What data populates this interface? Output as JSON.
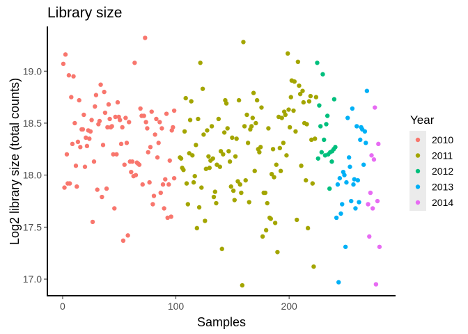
{
  "chart_data": {
    "type": "scatter",
    "title": "Library size",
    "xlabel": "Samples",
    "ylabel": "Log2 library size (total counts)",
    "xlim": [
      -13.5,
      294
    ],
    "ylim": [
      16.84,
      19.43
    ],
    "xticks": [
      0,
      100,
      200
    ],
    "xtick_labels": [
      "0",
      "100",
      "200"
    ],
    "yticks": [
      17.0,
      17.5,
      18.0,
      18.5,
      19.0
    ],
    "ytick_labels": [
      "17.0",
      "17.5",
      "18.0",
      "18.5",
      "19.0"
    ],
    "grid": false,
    "legend": {
      "title": "Year",
      "position": "right"
    },
    "series": [
      {
        "name": "2010",
        "color": "#F8766D",
        "points": [
          [
            72.8,
            19.32
          ],
          [
            2.5,
            19.16
          ],
          [
            0.6,
            19.07
          ],
          [
            63.6,
            19.08
          ],
          [
            5.5,
            18.96
          ],
          [
            9.6,
            18.95
          ],
          [
            33.6,
            18.87
          ],
          [
            36.7,
            18.8
          ],
          [
            29.5,
            18.77
          ],
          [
            7.6,
            18.75
          ],
          [
            14.6,
            18.72
          ],
          [
            40.6,
            18.68
          ],
          [
            48.6,
            18.7
          ],
          [
            28.5,
            18.66
          ],
          [
            37.5,
            18.6
          ],
          [
            68.7,
            18.64
          ],
          [
            78.6,
            18.61
          ],
          [
            18.7,
            18.58
          ],
          [
            69.8,
            18.57
          ],
          [
            71.8,
            18.57
          ],
          [
            91.7,
            18.59
          ],
          [
            98.5,
            18.62
          ],
          [
            41.6,
            18.54
          ],
          [
            46.6,
            18.56
          ],
          [
            49.6,
            18.56
          ],
          [
            50.6,
            18.53
          ],
          [
            55.6,
            18.55
          ],
          [
            58.6,
            18.51
          ],
          [
            25.6,
            18.53
          ],
          [
            10.7,
            18.5
          ],
          [
            32.6,
            18.52
          ],
          [
            31.6,
            18.49
          ],
          [
            82.7,
            18.54
          ],
          [
            85.7,
            18.51
          ],
          [
            73.6,
            18.51
          ],
          [
            74.7,
            18.45
          ],
          [
            87.6,
            18.45
          ],
          [
            97.4,
            18.46
          ],
          [
            96.4,
            18.43
          ],
          [
            39.6,
            18.46
          ],
          [
            43.5,
            18.47
          ],
          [
            42.5,
            18.46
          ],
          [
            52.7,
            18.46
          ],
          [
            16.8,
            18.44
          ],
          [
            17.8,
            18.44
          ],
          [
            22.6,
            18.43
          ],
          [
            24.6,
            18.42
          ],
          [
            81.6,
            18.39
          ],
          [
            20.5,
            18.36
          ],
          [
            23.6,
            18.35
          ],
          [
            13.5,
            18.32
          ],
          [
            8.6,
            18.3
          ],
          [
            15.6,
            18.27
          ],
          [
            21.5,
            18.28
          ],
          [
            35.7,
            18.29
          ],
          [
            51.7,
            18.3
          ],
          [
            56.6,
            18.31
          ],
          [
            84.7,
            18.31
          ],
          [
            77.5,
            18.27
          ],
          [
            75.5,
            18.22
          ],
          [
            3.7,
            18.2
          ],
          [
            44.7,
            18.2
          ],
          [
            47.6,
            18.2
          ],
          [
            83.7,
            18.17
          ],
          [
            27.7,
            18.13
          ],
          [
            94.6,
            18.14
          ],
          [
            59.5,
            18.13
          ],
          [
            61.5,
            18.13
          ],
          [
            65.6,
            18.12
          ],
          [
            66.7,
            18.11
          ],
          [
            67.7,
            18.1
          ],
          [
            11.7,
            18.09
          ],
          [
            19.7,
            18.08
          ],
          [
            54.6,
            18.1
          ],
          [
            60.5,
            18.03
          ],
          [
            62.6,
            17.99
          ],
          [
            64.6,
            18.0
          ],
          [
            98.5,
            17.97
          ],
          [
            90.6,
            17.96
          ],
          [
            88.6,
            17.91
          ],
          [
            93.7,
            17.91
          ],
          [
            76.7,
            17.93
          ],
          [
            70.6,
            17.91
          ],
          [
            4.5,
            17.92
          ],
          [
            6.3,
            17.92
          ],
          [
            1.6,
            17.88
          ],
          [
            12.5,
            17.89
          ],
          [
            30.6,
            17.86
          ],
          [
            38.8,
            17.87
          ],
          [
            34.7,
            17.79
          ],
          [
            86.6,
            17.83
          ],
          [
            80.6,
            17.8
          ],
          [
            79.6,
            17.72
          ],
          [
            89.6,
            17.68
          ],
          [
            45.7,
            17.68
          ],
          [
            92.7,
            17.59
          ],
          [
            95.8,
            17.6
          ],
          [
            26.5,
            17.55
          ],
          [
            57.6,
            17.42
          ],
          [
            53.5,
            17.37
          ]
        ]
      },
      {
        "name": "2011",
        "color": "#A3A500",
        "points": [
          [
            159.6,
            19.28
          ],
          [
            198.8,
            19.17
          ],
          [
            121.6,
            19.08
          ],
          [
            202.3,
            18.91
          ],
          [
            123.7,
            18.83
          ],
          [
            108.7,
            18.74
          ],
          [
            113.6,
            18.71
          ],
          [
            143.6,
            18.72
          ],
          [
            144.6,
            18.69
          ],
          [
            155.7,
            18.72
          ],
          [
            168.6,
            18.79
          ],
          [
            171.7,
            18.72
          ],
          [
            175.6,
            18.65
          ],
          [
            201.6,
            18.75
          ],
          [
            162.7,
            18.58
          ],
          [
            167.8,
            18.55
          ],
          [
            195.7,
            18.61
          ],
          [
            199.6,
            18.63
          ],
          [
            196.7,
            18.58
          ],
          [
            193.6,
            18.55
          ],
          [
            190.8,
            18.56
          ],
          [
            112.6,
            18.53
          ],
          [
            119.6,
            18.54
          ],
          [
            137.7,
            18.54
          ],
          [
            131.7,
            18.47
          ],
          [
            127.6,
            18.43
          ],
          [
            124.5,
            18.39
          ],
          [
            145.6,
            18.45
          ],
          [
            142.8,
            18.41
          ],
          [
            160.6,
            18.47
          ],
          [
            166.8,
            18.47
          ],
          [
            165.7,
            18.44
          ],
          [
            170.6,
            18.5
          ],
          [
            181.7,
            18.45
          ],
          [
            200.6,
            18.46
          ],
          [
            107.7,
            18.42
          ],
          [
            149.7,
            18.36
          ],
          [
            153.6,
            18.35
          ],
          [
            163.7,
            18.31
          ],
          [
            117.7,
            18.29
          ],
          [
            172.7,
            18.25
          ],
          [
            174.8,
            18.27
          ],
          [
            173.7,
            18.22
          ],
          [
            185.8,
            18.25
          ],
          [
            191.8,
            18.26
          ],
          [
            194.9,
            18.31
          ],
          [
            197.7,
            18.19
          ],
          [
            103.6,
            18.17
          ],
          [
            104.6,
            18.16
          ],
          [
            111.8,
            18.21
          ],
          [
            114.6,
            18.19
          ],
          [
            139.7,
            18.23
          ],
          [
            141.7,
            18.2
          ],
          [
            146.6,
            18.23
          ],
          [
            152.6,
            18.18
          ],
          [
            147.7,
            18.13
          ],
          [
            128.8,
            18.18
          ],
          [
            132.7,
            18.16
          ],
          [
            130.6,
            18.14
          ],
          [
            126.6,
            18.06
          ],
          [
            129.7,
            18.07
          ],
          [
            136.2,
            18.1
          ],
          [
            138.9,
            18.08
          ],
          [
            105.6,
            18.07
          ],
          [
            106.7,
            18.05
          ],
          [
            188.7,
            18.1
          ],
          [
            169.6,
            18.04
          ],
          [
            184.6,
            18.01
          ],
          [
            186.7,
            17.98
          ],
          [
            192.6,
            18.04
          ],
          [
            116.7,
            17.99
          ],
          [
            115.7,
            17.93
          ],
          [
            109.5,
            17.92
          ],
          [
            122.6,
            17.88
          ],
          [
            154.7,
            17.94
          ],
          [
            156.7,
            17.91
          ],
          [
            161.6,
            17.95
          ],
          [
            148.7,
            17.89
          ],
          [
            150.8,
            17.85
          ],
          [
            157.7,
            17.83
          ],
          [
            134.6,
            17.84
          ],
          [
            133.5,
            17.79
          ],
          [
            135.6,
            17.73
          ],
          [
            177.6,
            17.83
          ],
          [
            178.9,
            17.83
          ],
          [
            180.7,
            17.73
          ],
          [
            151.8,
            17.76
          ],
          [
            164.7,
            17.74
          ],
          [
            110.6,
            17.72
          ],
          [
            120.6,
            17.69
          ],
          [
            125.7,
            17.56
          ],
          [
            118.6,
            17.49
          ],
          [
            182.8,
            17.59
          ],
          [
            183.8,
            17.58
          ],
          [
            187.7,
            17.54
          ],
          [
            179.7,
            17.47
          ],
          [
            176.6,
            17.41
          ],
          [
            140.7,
            17.29
          ],
          [
            189.7,
            17.26
          ],
          [
            158.6,
            16.94
          ],
          [
            207.8,
            19.09
          ],
          [
            204.7,
            18.9
          ],
          [
            208.8,
            18.86
          ],
          [
            211.9,
            18.81
          ],
          [
            209.8,
            18.78
          ],
          [
            218.9,
            18.76
          ],
          [
            223.8,
            18.75
          ],
          [
            217.7,
            18.71
          ],
          [
            212.7,
            18.7
          ],
          [
            203.9,
            18.62
          ],
          [
            213.5,
            18.5
          ],
          [
            215.6,
            18.49
          ],
          [
            205.7,
            18.42
          ],
          [
            219.7,
            18.34
          ],
          [
            222.8,
            18.35
          ],
          [
            210.7,
            18.09
          ],
          [
            214.8,
            17.95
          ],
          [
            220.7,
            17.92
          ],
          [
            206.8,
            17.57
          ],
          [
            216.6,
            17.49
          ],
          [
            221.7,
            17.12
          ]
        ]
      },
      {
        "name": "2012",
        "color": "#00BF7D",
        "points": [
          [
            224.8,
            19.08
          ],
          [
            229.7,
            18.97
          ],
          [
            239.8,
            18.73
          ],
          [
            226.6,
            18.67
          ],
          [
            233.8,
            18.57
          ],
          [
            232.8,
            18.49
          ],
          [
            227.7,
            18.47
          ],
          [
            230.8,
            18.34
          ],
          [
            240.8,
            18.27
          ],
          [
            239.4,
            18.25
          ],
          [
            238.0,
            18.23
          ],
          [
            236.3,
            18.22
          ],
          [
            234.5,
            18.2
          ],
          [
            231.8,
            18.19
          ],
          [
            228.7,
            18.22
          ],
          [
            225.6,
            18.16
          ],
          [
            237.7,
            18.13
          ],
          [
            235.7,
            17.87
          ]
        ]
      },
      {
        "name": "2013",
        "color": "#00B0F6",
        "points": [
          [
            268.7,
            18.81
          ],
          [
            255.8,
            18.64
          ],
          [
            251.7,
            18.55
          ],
          [
            259.7,
            18.47
          ],
          [
            263.6,
            18.46
          ],
          [
            264.6,
            18.44
          ],
          [
            266.9,
            18.42
          ],
          [
            262.8,
            18.34
          ],
          [
            267.7,
            18.31
          ],
          [
            252.9,
            18.17
          ],
          [
            265.8,
            18.1
          ],
          [
            253.7,
            18.08
          ],
          [
            247.8,
            18.03
          ],
          [
            248.8,
            18.0
          ],
          [
            244.7,
            17.97
          ],
          [
            242.9,
            17.91
          ],
          [
            250.6,
            17.93
          ],
          [
            257.6,
            17.96
          ],
          [
            260.7,
            17.95
          ],
          [
            256.8,
            17.91
          ],
          [
            246.8,
            17.72
          ],
          [
            254.8,
            17.75
          ],
          [
            261.7,
            17.74
          ],
          [
            258.6,
            17.68
          ],
          [
            245.7,
            17.63
          ],
          [
            241.8,
            17.59
          ],
          [
            249.8,
            17.31
          ],
          [
            243.7,
            16.97
          ]
        ]
      },
      {
        "name": "2014",
        "color": "#E76BF3",
        "points": [
          [
            275.7,
            18.65
          ],
          [
            278.8,
            18.3
          ],
          [
            272.8,
            18.19
          ],
          [
            274.9,
            18.15
          ],
          [
            271.8,
            17.83
          ],
          [
            278.0,
            17.75
          ],
          [
            269.7,
            17.72
          ],
          [
            273.8,
            17.68
          ],
          [
            270.8,
            17.41
          ],
          [
            279.8,
            17.31
          ],
          [
            276.7,
            16.95
          ]
        ]
      }
    ]
  }
}
